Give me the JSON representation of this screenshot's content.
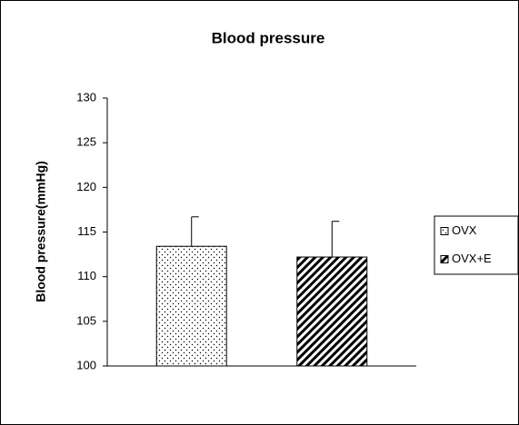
{
  "chart_data": {
    "type": "bar",
    "title": "Blood pressure",
    "y_label": "Blood pressure(mmHg)",
    "series": [
      {
        "name": "OVX",
        "pattern": "dots",
        "color": "#000000",
        "values": [
          113.4
        ],
        "errors": [
          3.3
        ]
      },
      {
        "name": "OVX+E",
        "pattern": "hatch",
        "color": "#000000",
        "values": [
          112.2
        ],
        "errors": [
          4.0
        ]
      }
    ],
    "ylim": [
      100,
      130
    ],
    "yticks": [
      100,
      105,
      110,
      115,
      120,
      125,
      130
    ],
    "grid": false,
    "legend": "right"
  }
}
